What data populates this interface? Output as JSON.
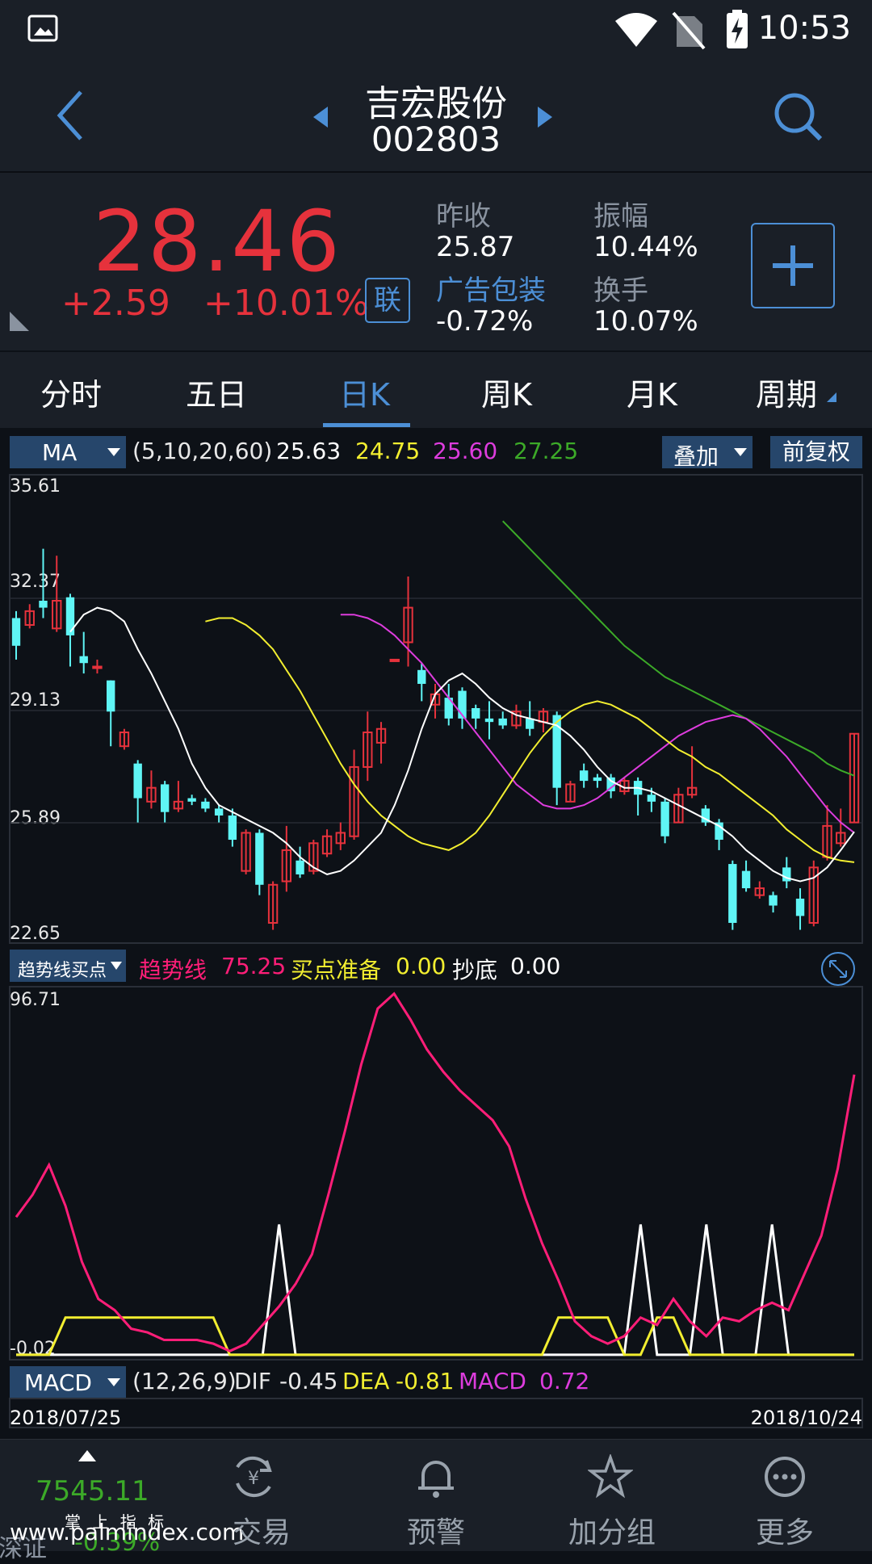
{
  "status_bar": {
    "time": "10:53"
  },
  "header": {
    "stock_name": "吉宏股份",
    "stock_code": "002803"
  },
  "quote": {
    "price": "28.46",
    "change": "+2.59",
    "change_pct": "+10.01%",
    "lian_label": "联",
    "prev_close_label": "昨收",
    "prev_close": "25.87",
    "amplitude_label": "振幅",
    "amplitude": "10.44%",
    "sector_label": "广告包装",
    "sector_change": "-0.72%",
    "turnover_label": "换手",
    "turnover": "10.07%"
  },
  "tabs": {
    "items": [
      {
        "label": "分时"
      },
      {
        "label": "五日"
      },
      {
        "label": "日K",
        "active": true
      },
      {
        "label": "周K"
      },
      {
        "label": "月K"
      },
      {
        "label": "周期"
      }
    ]
  },
  "ma_bar": {
    "select": "MA",
    "params": "(5,10,20,60)",
    "ma5": "25.63",
    "ma10": "24.75",
    "ma20": "25.60",
    "ma60": "27.25",
    "overlay": "叠加",
    "adjust": "前复权"
  },
  "price_axis": {
    "labels": [
      "35.61",
      "32.37",
      "29.13",
      "25.89",
      "22.65"
    ]
  },
  "indicator_bar": {
    "select": "趋势线买点",
    "trend_label": "趋势线",
    "trend_value": "75.25",
    "buy_label": "买点准备",
    "buy_value": "0.00",
    "bottom_label": "抄底",
    "bottom_value": "0.00"
  },
  "indicator_axis": {
    "max": "96.71",
    "min": "-0.02"
  },
  "macd_bar": {
    "select": "MACD",
    "params": "(12,26,9)",
    "dif_label": "DIF",
    "dif": "-0.45",
    "dea_label": "DEA",
    "dea": "-0.81",
    "macd_label": "MACD",
    "macd": "0.72"
  },
  "dates": {
    "start": "2018/07/25",
    "end": "2018/10/24"
  },
  "bottom_nav": {
    "index_value": "7545.11",
    "index_name": "深证",
    "index_change": "-0.39%",
    "watermark_top": "掌 上 指 标",
    "watermark": "www.palmindex.com",
    "items": [
      "交易",
      "预警",
      "加分组",
      "更多"
    ]
  },
  "colors": {
    "up": "#e6323c",
    "down": "#5ff5f5",
    "ma5": "#ffffff",
    "ma10": "#f2ee30",
    "ma20": "#dd3cdd",
    "ma60": "#3caa28",
    "accent": "#4c8fd6",
    "trend_line": "#ff1e78"
  },
  "chart_data": [
    {
      "type": "candlestick",
      "y_range": [
        22.65,
        35.61
      ],
      "x_range": [
        "2018/07/25",
        "2018/10/24"
      ],
      "candles": [
        {
          "o": 31.8,
          "c": 31.0,
          "h": 32.0,
          "l": 30.6
        },
        {
          "o": 31.6,
          "c": 32.0,
          "h": 32.2,
          "l": 31.5
        },
        {
          "o": 32.3,
          "c": 32.1,
          "h": 33.8,
          "l": 31.8
        },
        {
          "o": 31.5,
          "c": 32.3,
          "h": 33.6,
          "l": 31.4
        },
        {
          "o": 32.4,
          "c": 31.3,
          "h": 32.5,
          "l": 30.4
        },
        {
          "o": 30.7,
          "c": 30.5,
          "h": 31.4,
          "l": 30.2
        },
        {
          "o": 30.4,
          "c": 30.4,
          "h": 30.6,
          "l": 30.2
        },
        {
          "o": 30.0,
          "c": 29.1,
          "h": 30.0,
          "l": 28.1
        },
        {
          "o": 28.1,
          "c": 28.5,
          "h": 28.6,
          "l": 28.0
        },
        {
          "o": 27.6,
          "c": 26.6,
          "h": 27.7,
          "l": 25.9
        },
        {
          "o": 26.5,
          "c": 26.9,
          "h": 27.4,
          "l": 26.3
        },
        {
          "o": 27.0,
          "c": 26.2,
          "h": 27.1,
          "l": 25.9
        },
        {
          "o": 26.3,
          "c": 26.5,
          "h": 27.1,
          "l": 26.2
        },
        {
          "o": 26.6,
          "c": 26.5,
          "h": 26.7,
          "l": 26.4
        },
        {
          "o": 26.5,
          "c": 26.3,
          "h": 26.6,
          "l": 26.2
        },
        {
          "o": 26.3,
          "c": 26.1,
          "h": 26.4,
          "l": 25.9
        },
        {
          "o": 26.1,
          "c": 25.4,
          "h": 26.3,
          "l": 25.2
        },
        {
          "o": 24.5,
          "c": 25.6,
          "h": 25.7,
          "l": 24.4
        },
        {
          "o": 25.6,
          "c": 24.1,
          "h": 25.7,
          "l": 23.8
        },
        {
          "o": 23.0,
          "c": 24.1,
          "h": 24.2,
          "l": 22.8
        },
        {
          "o": 24.2,
          "c": 25.1,
          "h": 25.8,
          "l": 23.9
        },
        {
          "o": 24.8,
          "c": 24.4,
          "h": 25.2,
          "l": 24.3
        },
        {
          "o": 24.5,
          "c": 25.3,
          "h": 25.4,
          "l": 24.4
        },
        {
          "o": 25.0,
          "c": 25.5,
          "h": 25.7,
          "l": 24.9
        },
        {
          "o": 25.3,
          "c": 25.6,
          "h": 25.9,
          "l": 25.1
        },
        {
          "o": 25.5,
          "c": 27.5,
          "h": 28.0,
          "l": 25.4
        },
        {
          "o": 27.5,
          "c": 28.5,
          "h": 29.1,
          "l": 27.1
        },
        {
          "o": 28.2,
          "c": 28.6,
          "h": 28.8,
          "l": 27.6
        },
        {
          "o": 30.6,
          "c": 30.6,
          "h": 30.6,
          "l": 30.6
        },
        {
          "o": 31.1,
          "c": 32.1,
          "h": 33.0,
          "l": 30.4
        },
        {
          "o": 30.3,
          "c": 29.9,
          "h": 30.5,
          "l": 29.4
        },
        {
          "o": 29.3,
          "c": 29.6,
          "h": 29.9,
          "l": 28.9
        },
        {
          "o": 29.5,
          "c": 28.9,
          "h": 29.9,
          "l": 28.7
        },
        {
          "o": 29.7,
          "c": 28.9,
          "h": 29.8,
          "l": 28.6
        },
        {
          "o": 29.2,
          "c": 28.9,
          "h": 29.3,
          "l": 28.6
        },
        {
          "o": 28.9,
          "c": 28.8,
          "h": 29.4,
          "l": 28.3
        },
        {
          "o": 28.9,
          "c": 28.7,
          "h": 29.1,
          "l": 28.6
        },
        {
          "o": 28.7,
          "c": 29.1,
          "h": 29.3,
          "l": 28.6
        },
        {
          "o": 28.9,
          "c": 28.6,
          "h": 29.4,
          "l": 28.4
        },
        {
          "o": 28.8,
          "c": 29.1,
          "h": 29.2,
          "l": 28.5
        },
        {
          "o": 29.0,
          "c": 26.9,
          "h": 29.1,
          "l": 26.4
        },
        {
          "o": 26.5,
          "c": 27.0,
          "h": 27.1,
          "l": 26.5
        },
        {
          "o": 27.4,
          "c": 27.1,
          "h": 27.6,
          "l": 26.9
        },
        {
          "o": 27.2,
          "c": 27.1,
          "h": 27.3,
          "l": 26.9
        },
        {
          "o": 27.2,
          "c": 26.8,
          "h": 27.3,
          "l": 26.6
        },
        {
          "o": 26.8,
          "c": 27.1,
          "h": 27.2,
          "l": 26.7
        },
        {
          "o": 27.1,
          "c": 26.7,
          "h": 27.2,
          "l": 26.1
        },
        {
          "o": 26.7,
          "c": 26.5,
          "h": 26.9,
          "l": 26.2
        },
        {
          "o": 26.5,
          "c": 25.5,
          "h": 26.6,
          "l": 25.3
        },
        {
          "o": 25.9,
          "c": 26.7,
          "h": 26.9,
          "l": 25.9
        },
        {
          "o": 26.7,
          "c": 26.9,
          "h": 28.1,
          "l": 26.6
        },
        {
          "o": 26.3,
          "c": 25.9,
          "h": 26.4,
          "l": 25.8
        },
        {
          "o": 25.9,
          "c": 25.4,
          "h": 26.0,
          "l": 25.1
        },
        {
          "o": 24.7,
          "c": 23.0,
          "h": 24.8,
          "l": 22.8
        },
        {
          "o": 24.5,
          "c": 24.0,
          "h": 24.8,
          "l": 23.9
        },
        {
          "o": 23.8,
          "c": 24.0,
          "h": 24.2,
          "l": 23.7
        },
        {
          "o": 23.8,
          "c": 23.5,
          "h": 23.9,
          "l": 23.3
        },
        {
          "o": 24.6,
          "c": 24.2,
          "h": 24.9,
          "l": 24.0
        },
        {
          "o": 23.7,
          "c": 23.2,
          "h": 24.0,
          "l": 22.8
        },
        {
          "o": 23.0,
          "c": 24.6,
          "h": 24.8,
          "l": 22.9
        },
        {
          "o": 24.9,
          "c": 25.8,
          "h": 26.4,
          "l": 24.8
        },
        {
          "o": 25.3,
          "c": 25.6,
          "h": 26.3,
          "l": 25.2
        },
        {
          "o": 25.9,
          "c": 28.46,
          "h": 28.46,
          "l": 25.9
        }
      ],
      "ma": {
        "ma5": [
          31.4,
          31.9,
          32.1,
          32.0,
          31.7,
          30.9,
          30.2,
          29.4,
          28.6,
          27.6,
          26.9,
          26.4,
          26.2,
          26.0,
          25.8,
          25.6,
          25.3,
          24.9,
          24.6,
          24.4,
          24.5,
          24.8,
          25.2,
          25.6,
          26.4,
          27.4,
          28.6,
          29.6,
          30.0,
          30.2,
          29.9,
          29.5,
          29.2,
          29.0,
          28.9,
          28.8,
          28.7,
          28.4,
          28.0,
          27.5,
          27.1,
          26.9,
          26.9,
          26.8,
          26.6,
          26.4,
          26.2,
          26.0,
          25.8,
          25.5,
          25.1,
          24.8,
          24.5,
          24.3,
          24.2,
          24.3,
          24.6,
          25.1,
          25.63
        ],
        "ma10": [
          31.7,
          31.8,
          31.8,
          31.6,
          31.3,
          30.9,
          30.3,
          29.7,
          29.0,
          28.3,
          27.6,
          27.0,
          26.5,
          26.1,
          25.8,
          25.5,
          25.3,
          25.2,
          25.1,
          25.3,
          25.6,
          26.1,
          26.7,
          27.3,
          27.9,
          28.4,
          28.8,
          29.1,
          29.3,
          29.4,
          29.3,
          29.1,
          28.9,
          28.6,
          28.3,
          28.0,
          27.8,
          27.5,
          27.3,
          27.0,
          26.7,
          26.4,
          26.1,
          25.7,
          25.4,
          25.1,
          24.9,
          24.8,
          24.75
        ],
        "ma20": [
          31.9,
          31.9,
          31.8,
          31.6,
          31.3,
          30.9,
          30.5,
          30.0,
          29.5,
          29.0,
          28.5,
          28.0,
          27.5,
          27.0,
          26.7,
          26.4,
          26.3,
          26.3,
          26.4,
          26.6,
          26.9,
          27.2,
          27.5,
          27.8,
          28.1,
          28.4,
          28.6,
          28.8,
          28.9,
          29.0,
          28.9,
          28.6,
          28.2,
          27.8,
          27.3,
          26.8,
          26.3,
          25.9,
          25.6
        ],
        "ma60": [
          34.6,
          34.2,
          33.8,
          33.4,
          33.0,
          32.6,
          32.2,
          31.8,
          31.4,
          31.0,
          30.7,
          30.4,
          30.1,
          29.9,
          29.7,
          29.5,
          29.3,
          29.1,
          28.9,
          28.7,
          28.5,
          28.3,
          28.1,
          27.9,
          27.6,
          27.4,
          27.25
        ]
      }
    },
    {
      "type": "line",
      "y_range": [
        -0.02,
        96.71
      ],
      "series": [
        {
          "name": "趋势线",
          "values": [
            37,
            43,
            51,
            40,
            25,
            15,
            12,
            7,
            6,
            4,
            4,
            4,
            3,
            1,
            3,
            8,
            13,
            19,
            27,
            43,
            60,
            78,
            93,
            97,
            90,
            82,
            76,
            71,
            67,
            63,
            56,
            42,
            30,
            20,
            9,
            5,
            3,
            5,
            10,
            8,
            15,
            9,
            5,
            10,
            9,
            12,
            14,
            12,
            22,
            32,
            50,
            75.25
          ]
        },
        {
          "name": "买点准备",
          "values": [
            0,
            0,
            0,
            10,
            10,
            10,
            10,
            10,
            10,
            10,
            10,
            10,
            10,
            0,
            0,
            0,
            0,
            0,
            0,
            0,
            0,
            0,
            0,
            0,
            0,
            0,
            0,
            0,
            0,
            0,
            0,
            0,
            0,
            10,
            10,
            10,
            10,
            0,
            0,
            10,
            10,
            0,
            0,
            0,
            0,
            0,
            0,
            0,
            0,
            0,
            0,
            0
          ]
        },
        {
          "name": "抄底",
          "values": [
            0,
            0,
            0,
            0,
            0,
            0,
            0,
            0,
            0,
            0,
            0,
            0,
            0,
            0,
            0,
            0,
            35,
            0,
            0,
            0,
            0,
            0,
            0,
            0,
            0,
            0,
            0,
            0,
            0,
            0,
            0,
            0,
            0,
            0,
            0,
            0,
            0,
            0,
            35,
            0,
            0,
            0,
            35,
            0,
            0,
            0,
            35,
            0,
            0,
            0,
            0,
            0
          ]
        }
      ]
    }
  ]
}
